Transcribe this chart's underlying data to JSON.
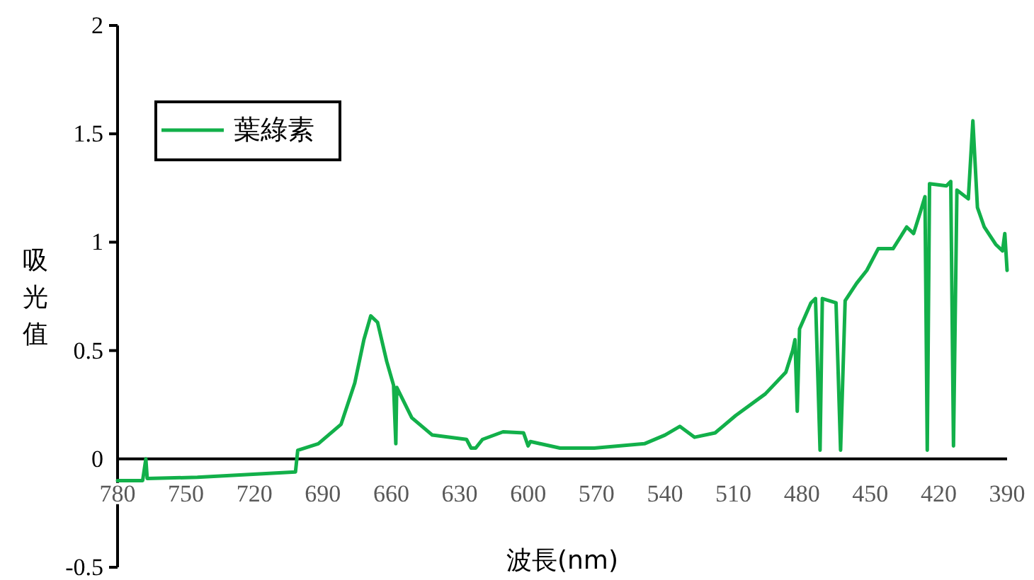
{
  "chart_data": {
    "type": "line",
    "xlabel": "波長(nm)",
    "ylabel": "吸光值",
    "xlim": [
      780,
      390
    ],
    "xticks": [
      780,
      750,
      720,
      690,
      660,
      630,
      600,
      570,
      540,
      510,
      480,
      450,
      420,
      390
    ],
    "ylim": [
      -0.5,
      2
    ],
    "yticks": [
      -0.5,
      0,
      0.5,
      1,
      1.5,
      2
    ],
    "grid": false,
    "legend": "top left",
    "marker": "none",
    "line_style": "solid",
    "series": [
      {
        "name": "葉綠素",
        "color": "#12b04a",
        "x": [
          780,
          769,
          767.6,
          767,
          745,
          702,
          701,
          692,
          682,
          676,
          672,
          669,
          666,
          662,
          659,
          658,
          657.6,
          651,
          642,
          627,
          625,
          623,
          620,
          611,
          602,
          600,
          599,
          586,
          571,
          549,
          540,
          533.5,
          527,
          518,
          509,
          496,
          487,
          484,
          483,
          482,
          481,
          476,
          474,
          472,
          471,
          465,
          463,
          461,
          456,
          451.5,
          446.5,
          440,
          434,
          431,
          428,
          426,
          425,
          424,
          416.6,
          414.7,
          413.5,
          412,
          407,
          405,
          403,
          400,
          395,
          392,
          391,
          390
        ],
        "values": [
          -0.1,
          -0.1,
          0.0,
          -0.09,
          -0.085,
          -0.06,
          0.04,
          0.07,
          0.16,
          0.35,
          0.55,
          0.66,
          0.63,
          0.45,
          0.34,
          0.07,
          0.33,
          0.19,
          0.11,
          0.09,
          0.05,
          0.05,
          0.09,
          0.125,
          0.12,
          0.06,
          0.08,
          0.05,
          0.05,
          0.07,
          0.11,
          0.15,
          0.1,
          0.12,
          0.2,
          0.3,
          0.4,
          0.5,
          0.55,
          0.22,
          0.6,
          0.72,
          0.74,
          0.04,
          0.74,
          0.72,
          0.04,
          0.73,
          0.81,
          0.87,
          0.97,
          0.97,
          1.07,
          1.04,
          1.14,
          1.21,
          0.04,
          1.27,
          1.26,
          1.28,
          0.06,
          1.24,
          1.2,
          1.56,
          1.16,
          1.07,
          0.99,
          0.96,
          1.04,
          0.87
        ]
      }
    ]
  }
}
